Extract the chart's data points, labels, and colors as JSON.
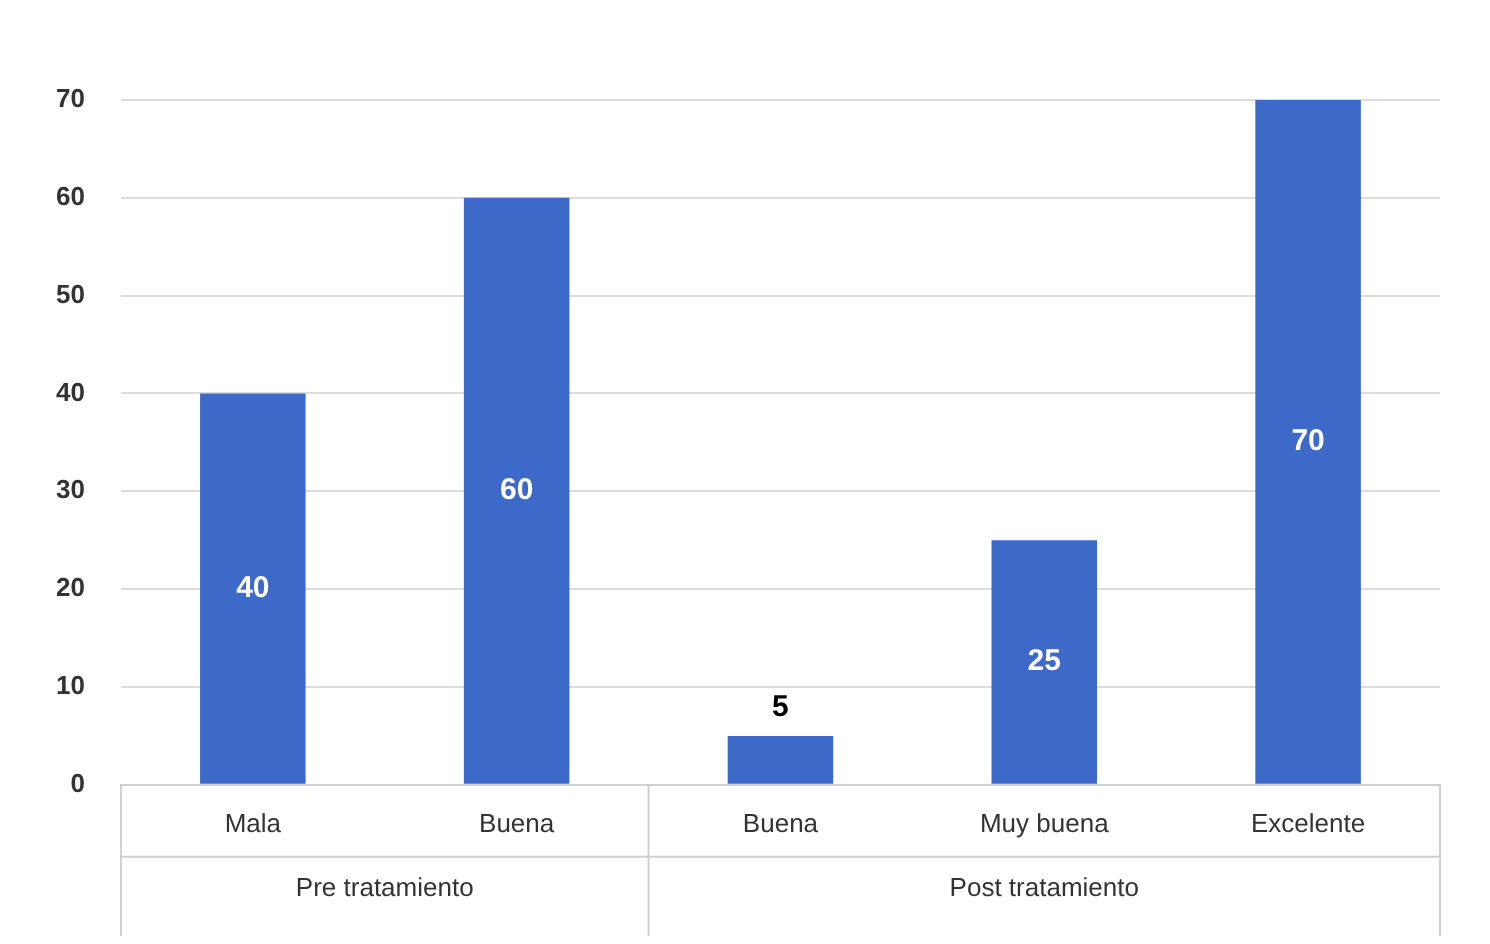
{
  "chart_data": {
    "type": "bar",
    "categories": [
      "Mala",
      "Buena",
      "Buena",
      "Muy buena",
      "Excelente"
    ],
    "values": [
      40,
      60,
      5,
      25,
      70
    ],
    "color": "#3d6ac9",
    "ylim": [
      0,
      70
    ],
    "yticks": [
      0,
      10,
      20,
      30,
      40,
      50,
      60,
      70
    ],
    "grid": "y",
    "legend": false,
    "data_labels": true,
    "annotations": [
      "Pre tratamiento",
      "Post tratamiento"
    ]
  }
}
